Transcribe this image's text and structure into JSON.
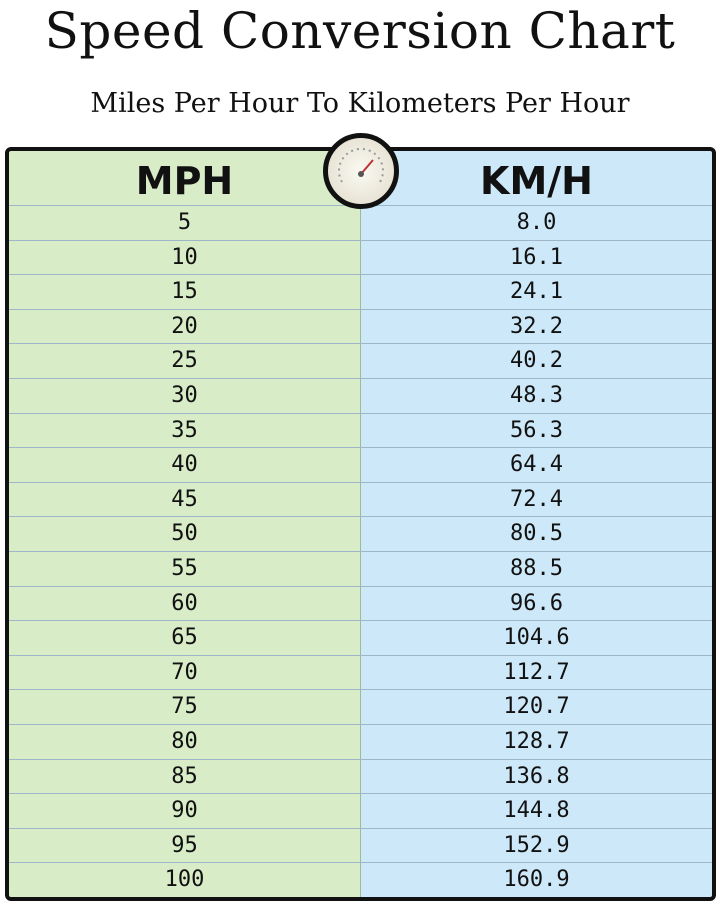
{
  "header": {
    "title": "Speed Conversion Chart",
    "subtitle": "Miles Per Hour To Kilometers Per Hour"
  },
  "table": {
    "columns": [
      "MPH",
      "KM/H"
    ],
    "rows": [
      [
        "5",
        "8.0"
      ],
      [
        "10",
        "16.1"
      ],
      [
        "15",
        "24.1"
      ],
      [
        "20",
        "32.2"
      ],
      [
        "25",
        "40.2"
      ],
      [
        "30",
        "48.3"
      ],
      [
        "35",
        "56.3"
      ],
      [
        "40",
        "64.4"
      ],
      [
        "45",
        "72.4"
      ],
      [
        "50",
        "80.5"
      ],
      [
        "55",
        "88.5"
      ],
      [
        "60",
        "96.6"
      ],
      [
        "65",
        "104.6"
      ],
      [
        "70",
        "112.7"
      ],
      [
        "75",
        "120.7"
      ],
      [
        "80",
        "128.7"
      ],
      [
        "85",
        "136.8"
      ],
      [
        "90",
        "144.8"
      ],
      [
        "95",
        "152.9"
      ],
      [
        "100",
        "160.9"
      ]
    ]
  }
}
